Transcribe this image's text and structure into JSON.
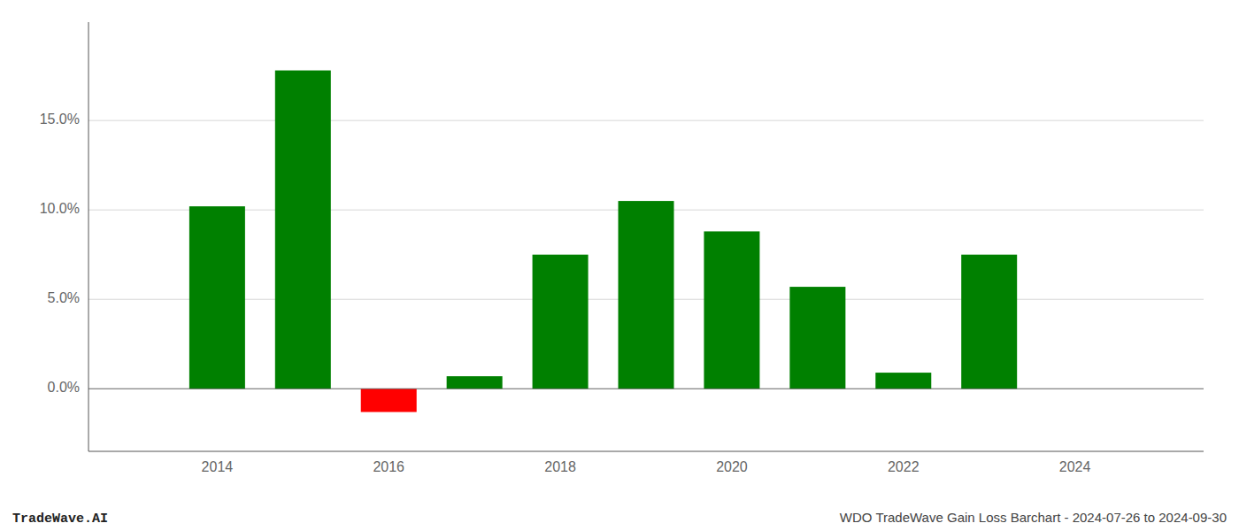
{
  "chart_data": {
    "type": "bar",
    "x": [
      2014,
      2015,
      2016,
      2017,
      2018,
      2019,
      2020,
      2021,
      2022,
      2023
    ],
    "values": [
      0.102,
      0.178,
      -0.013,
      0.007,
      0.075,
      0.105,
      0.088,
      0.057,
      0.009,
      0.075
    ],
    "colors": [
      "#008000",
      "#008000",
      "#ff0000",
      "#008000",
      "#008000",
      "#008000",
      "#008000",
      "#008000",
      "#008000",
      "#008000"
    ],
    "xlim": [
      2012.5,
      2025.5
    ],
    "xticks": [
      2014,
      2016,
      2018,
      2020,
      2022,
      2024
    ],
    "ylim": [
      -0.035,
      0.205
    ],
    "yticks": [
      {
        "value": 0.0,
        "label": "0.0%"
      },
      {
        "value": 0.05,
        "label": "5.0%"
      },
      {
        "value": 0.1,
        "label": "10.0%"
      },
      {
        "value": 0.15,
        "label": "15.0%"
      }
    ],
    "grid": true,
    "annotations": [
      "TradeWave.AI",
      "WDO TradeWave Gain Loss Barchart - 2024-07-26 to 2024-09-30"
    ]
  }
}
